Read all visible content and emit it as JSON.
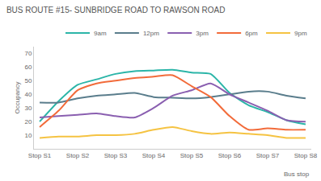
{
  "chart_data": {
    "type": "line",
    "title": "BUS ROUTE #15- SUNBRIDGE ROAD TO RAWSON ROAD",
    "x_label": "Bus stop",
    "y_label": "Occupancy",
    "categories": [
      "Stop S1",
      null,
      "Stop S2",
      null,
      "Stop S3",
      null,
      "Stop S4",
      null,
      "Stop S5",
      null,
      "Stop S6",
      null,
      "Stop S7",
      null,
      "Stop S8"
    ],
    "series": [
      {
        "name": "9am",
        "color": "#2bb5a8",
        "values": [
          20,
          35,
          47,
          51,
          55,
          57,
          57.5,
          58,
          56,
          55,
          41,
          32,
          27,
          21,
          18
        ]
      },
      {
        "name": "12pm",
        "color": "#5a7d8c",
        "values": [
          34,
          34,
          37,
          39,
          40,
          41,
          38,
          37.5,
          37,
          38,
          40,
          42,
          42,
          39,
          37
        ]
      },
      {
        "name": "3pm",
        "color": "#8a5fb0",
        "values": [
          23,
          24,
          25,
          26,
          24,
          23,
          30,
          39,
          43,
          48,
          40,
          34,
          28,
          21,
          20
        ]
      },
      {
        "name": "6pm",
        "color": "#f26b3a",
        "values": [
          16,
          28,
          43,
          48,
          50,
          52,
          53,
          54,
          46,
          38,
          24,
          14,
          15,
          14,
          14
        ]
      },
      {
        "name": "9pm",
        "color": "#f5c342",
        "values": [
          8,
          9,
          9,
          10,
          10,
          11,
          14,
          16,
          13,
          11,
          12,
          11,
          10,
          8,
          8
        ]
      }
    ],
    "ylim": [
      0,
      75
    ],
    "yticks": [
      10,
      20,
      30,
      40,
      50,
      60,
      70
    ],
    "grid": false,
    "legend": "top right"
  }
}
